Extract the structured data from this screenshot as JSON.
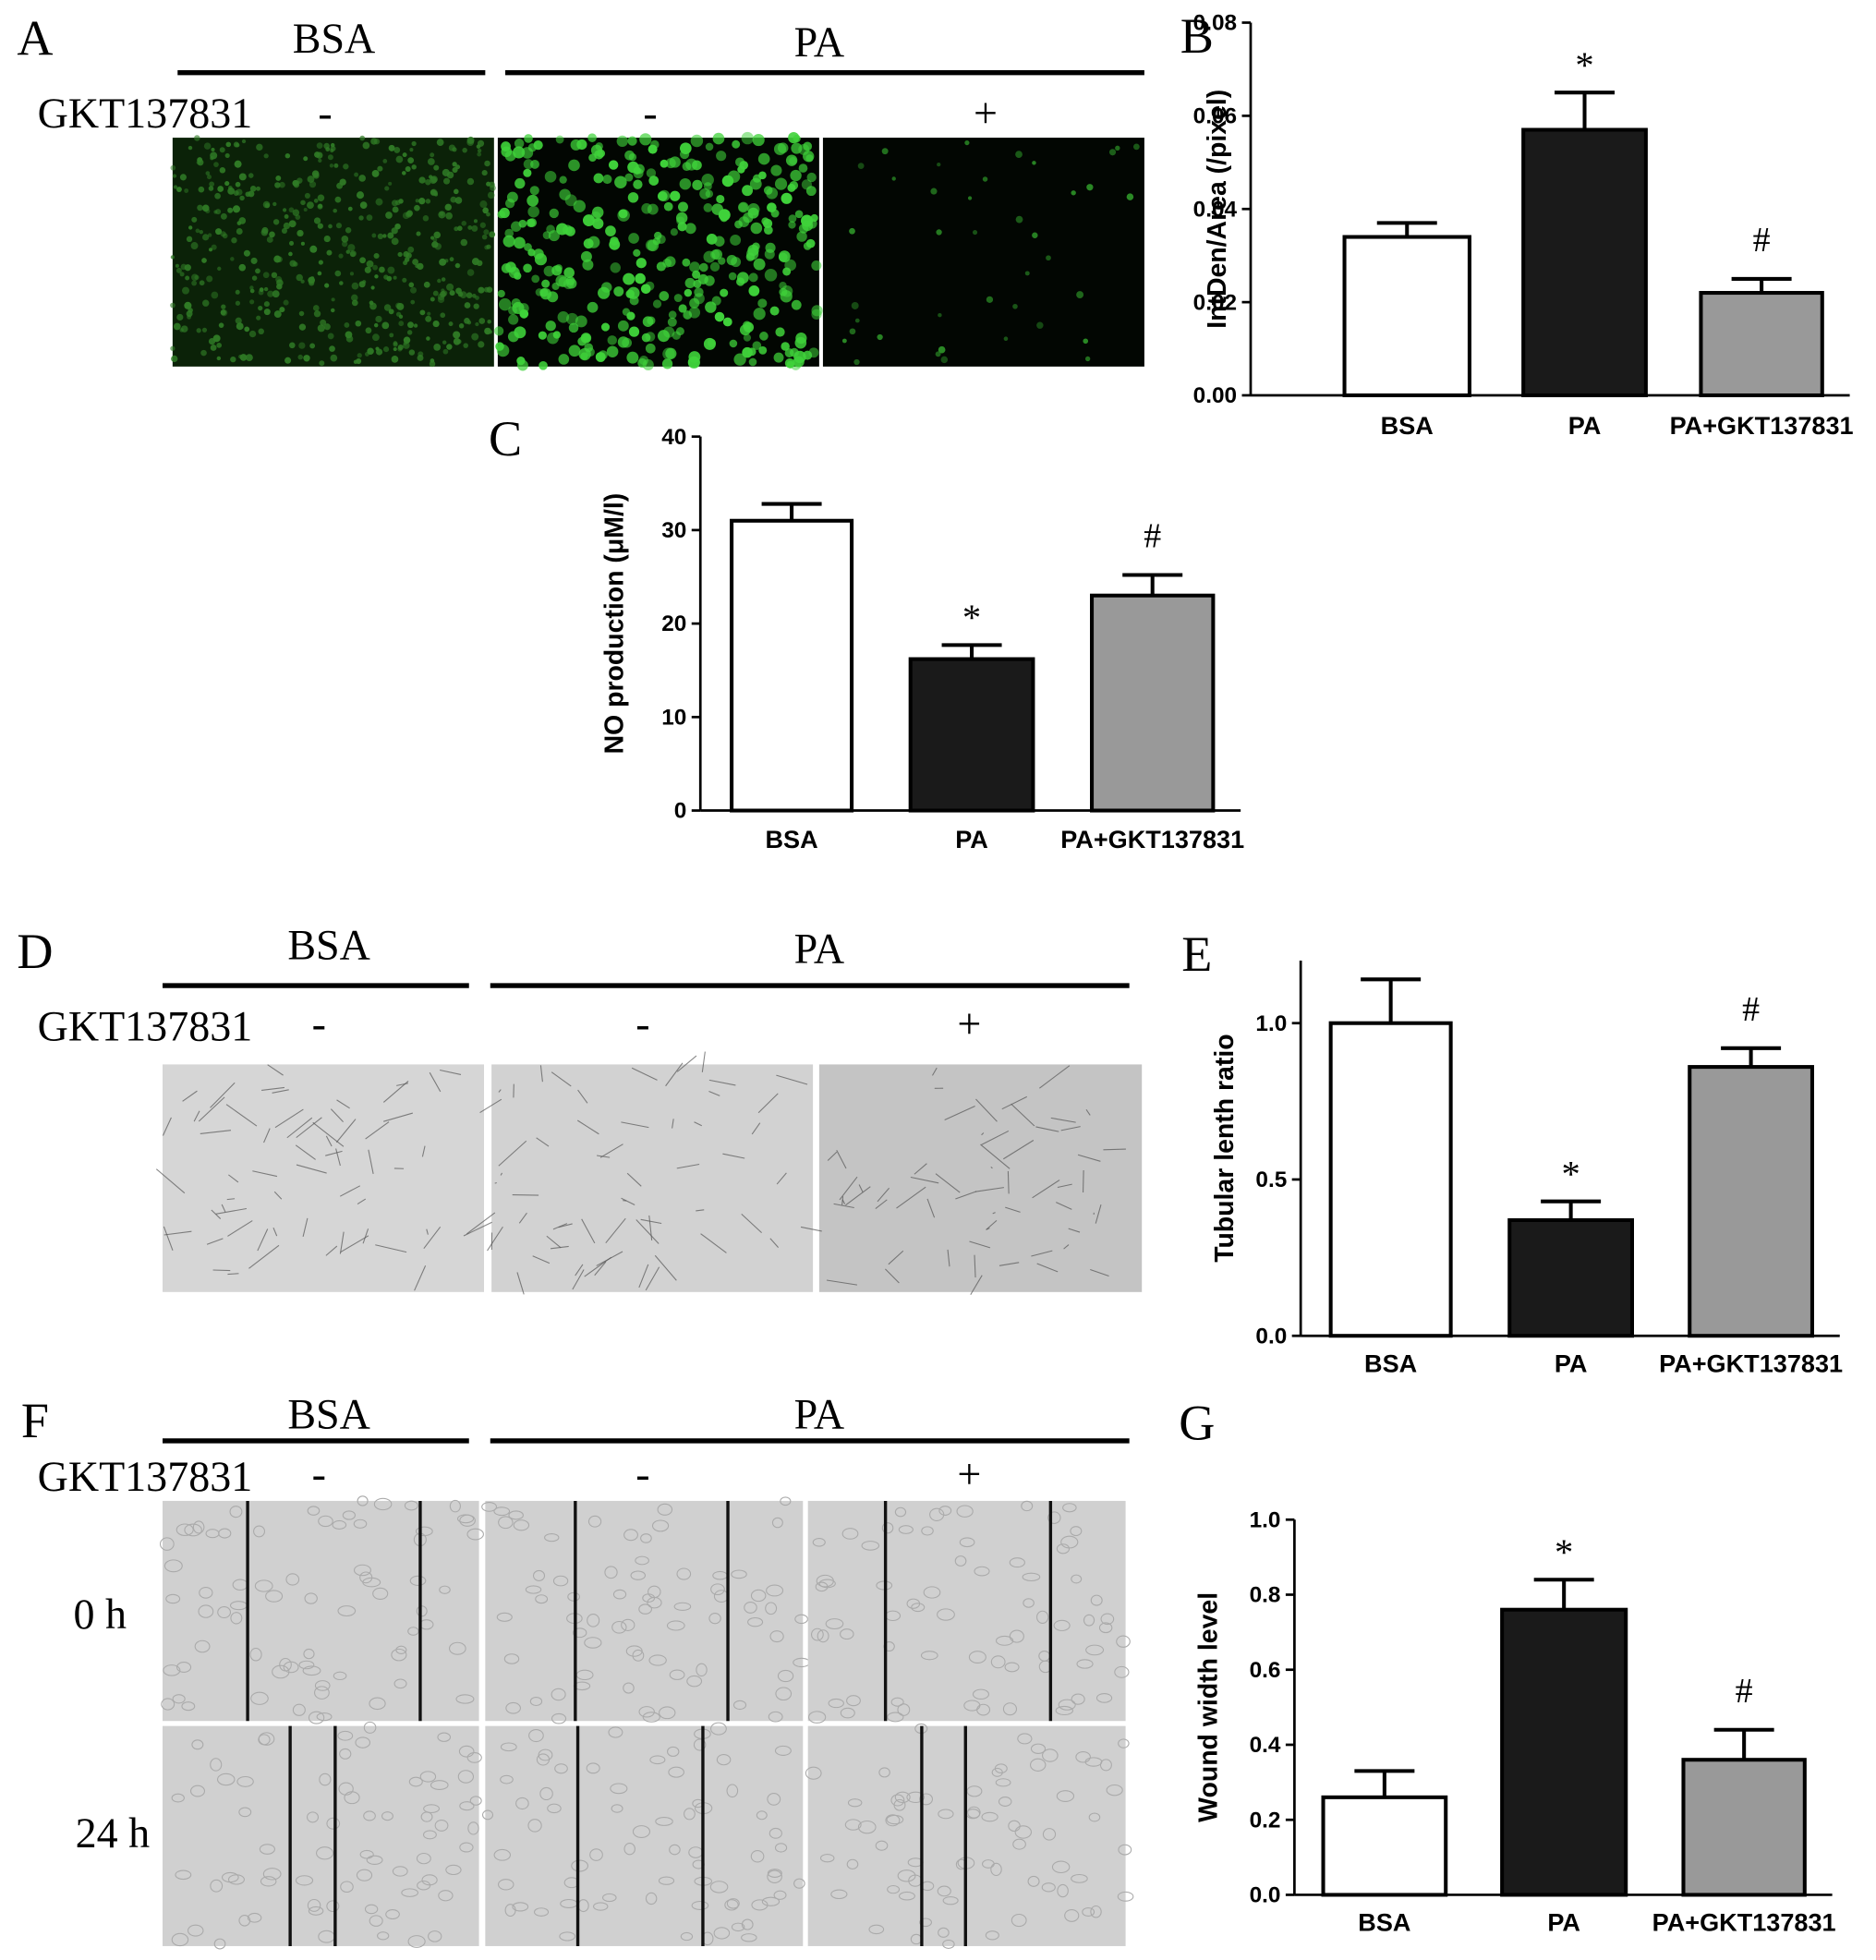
{
  "panels": {
    "A": {
      "label": "A",
      "groups": [
        "BSA",
        "PA"
      ],
      "treatment": "GKT137831",
      "signs": [
        "-",
        "-",
        "+"
      ]
    },
    "D": {
      "label": "D",
      "groups": [
        "BSA",
        "PA"
      ],
      "treatment": "GKT137831",
      "signs": [
        "-",
        "-",
        "+"
      ]
    },
    "F": {
      "label": "F",
      "groups": [
        "BSA",
        "PA"
      ],
      "treatment": "GKT137831",
      "signs": [
        "-",
        "-",
        "+"
      ],
      "rows": [
        "0 h",
        "24 h"
      ]
    }
  },
  "chart_data": [
    {
      "type": "bar",
      "label": "B",
      "ylabel": "IntDen/Area (/pixel)",
      "categories": [
        "BSA",
        "PA",
        "PA+GKT137831"
      ],
      "values": [
        0.034,
        0.057,
        0.022
      ],
      "errors": [
        0.003,
        0.008,
        0.003
      ],
      "bar_labels": [
        null,
        "*",
        "#"
      ],
      "colors": [
        "#ffffff",
        "#1a1a1a",
        "#999999"
      ],
      "ylim": [
        0,
        0.08
      ],
      "yticks": [
        {
          "value": 0,
          "label": "0.00"
        },
        {
          "value": 0.02,
          "label": "0.02"
        },
        {
          "value": 0.04,
          "label": "0.04"
        },
        {
          "value": 0.06,
          "label": "0.06"
        },
        {
          "value": 0.08,
          "label": "0.08"
        }
      ]
    },
    {
      "type": "bar",
      "label": "C",
      "ylabel": "NO production (μM/l)",
      "categories": [
        "BSA",
        "PA",
        "PA+GKT137831"
      ],
      "values": [
        31,
        16.2,
        23
      ],
      "errors": [
        1.8,
        1.5,
        2.2
      ],
      "bar_labels": [
        null,
        "*",
        "#"
      ],
      "colors": [
        "#ffffff",
        "#1a1a1a",
        "#999999"
      ],
      "ylim": [
        0,
        40
      ],
      "yticks": [
        0,
        10,
        20,
        30,
        40
      ]
    },
    {
      "type": "bar",
      "label": "E",
      "ylabel": "Tubular lenth ratio",
      "categories": [
        "BSA",
        "PA",
        "PA+GKT137831"
      ],
      "values": [
        1.0,
        0.37,
        0.86
      ],
      "errors": [
        0.14,
        0.06,
        0.06
      ],
      "bar_labels": [
        null,
        "*",
        "#"
      ],
      "colors": [
        "#ffffff",
        "#1a1a1a",
        "#999999"
      ],
      "ylim": [
        0,
        1.2
      ],
      "yticks": [
        {
          "value": 0,
          "label": "0.0"
        },
        {
          "value": 0.5,
          "label": "0.5"
        },
        {
          "value": 1,
          "label": "1.0"
        }
      ]
    },
    {
      "type": "bar",
      "label": "G",
      "ylabel": "Wound width level",
      "categories": [
        "BSA",
        "PA",
        "PA+GKT137831"
      ],
      "values": [
        0.26,
        0.76,
        0.36
      ],
      "errors": [
        0.07,
        0.08,
        0.08
      ],
      "bar_labels": [
        null,
        "*",
        "#"
      ],
      "colors": [
        "#ffffff",
        "#1a1a1a",
        "#999999"
      ],
      "ylim": [
        0,
        1
      ],
      "yticks": [
        {
          "value": 0,
          "label": "0.0"
        },
        {
          "value": 0.2,
          "label": "0.2"
        },
        {
          "value": 0.4,
          "label": "0.4"
        },
        {
          "value": 0.6,
          "label": "0.6"
        },
        {
          "value": 0.8,
          "label": "0.8"
        },
        {
          "value": 1,
          "label": "1.0"
        }
      ]
    }
  ]
}
